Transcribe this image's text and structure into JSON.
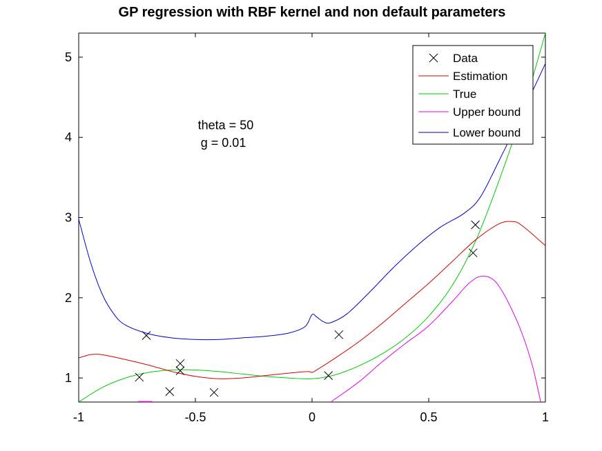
{
  "chart_data": {
    "type": "line",
    "title": "GP regression with RBF kernel and non default parameters",
    "xlabel": "",
    "ylabel": "",
    "xlim": [
      -1,
      1
    ],
    "ylim": [
      0.7,
      5.3
    ],
    "xticks": [
      -1,
      -0.5,
      0,
      0.5,
      1
    ],
    "xtick_labels": [
      "-1",
      "-0.5",
      "0",
      "0.5",
      "1"
    ],
    "yticks": [
      1,
      2,
      3,
      4,
      5
    ],
    "ytick_labels": [
      "1",
      "2",
      "3",
      "4",
      "5"
    ],
    "grid": false,
    "legend_position": "top-right",
    "annotations": [
      {
        "text": "theta = 50",
        "x": -0.37,
        "y": 4.1
      },
      {
        "text": "g = 0.01",
        "x": -0.38,
        "y": 3.88
      }
    ],
    "series": [
      {
        "name": "Data",
        "style": "markers-x",
        "color": "#000000",
        "points": [
          [
            -0.74,
            1.01
          ],
          [
            -0.71,
            1.53
          ],
          [
            -0.61,
            0.83
          ],
          [
            -0.565,
            1.18
          ],
          [
            -0.565,
            1.09
          ],
          [
            -0.42,
            0.82
          ],
          [
            0.07,
            1.03
          ],
          [
            0.115,
            1.54
          ],
          [
            0.69,
            2.56
          ],
          [
            0.7,
            2.91
          ]
        ]
      },
      {
        "name": "Estimation",
        "style": "line",
        "color": "#d40000",
        "points": [
          [
            -1,
            1.25
          ],
          [
            -0.95,
            1.29
          ],
          [
            -0.9,
            1.29
          ],
          [
            -0.8,
            1.23
          ],
          [
            -0.7,
            1.16
          ],
          [
            -0.6,
            1.08
          ],
          [
            -0.5,
            1.02
          ],
          [
            -0.4,
            0.99
          ],
          [
            -0.3,
            1.0
          ],
          [
            -0.2,
            1.03
          ],
          [
            -0.1,
            1.06
          ],
          [
            -0.02,
            1.08
          ],
          [
            0.0,
            1.07
          ],
          [
            0.02,
            1.1
          ],
          [
            0.1,
            1.25
          ],
          [
            0.2,
            1.45
          ],
          [
            0.3,
            1.68
          ],
          [
            0.4,
            1.93
          ],
          [
            0.5,
            2.18
          ],
          [
            0.6,
            2.45
          ],
          [
            0.7,
            2.72
          ],
          [
            0.8,
            2.92
          ],
          [
            0.86,
            2.95
          ],
          [
            0.9,
            2.9
          ],
          [
            1.0,
            2.65
          ]
        ]
      },
      {
        "name": "True",
        "style": "line",
        "color": "#00cc00",
        "points": [
          [
            -1,
            0.7
          ],
          [
            -0.9,
            0.88
          ],
          [
            -0.8,
            1.0
          ],
          [
            -0.7,
            1.07
          ],
          [
            -0.6,
            1.1
          ],
          [
            -0.5,
            1.1
          ],
          [
            -0.4,
            1.08
          ],
          [
            -0.3,
            1.05
          ],
          [
            -0.2,
            1.02
          ],
          [
            -0.1,
            1.0
          ],
          [
            0.0,
            0.99
          ],
          [
            0.1,
            1.04
          ],
          [
            0.2,
            1.15
          ],
          [
            0.3,
            1.3
          ],
          [
            0.4,
            1.5
          ],
          [
            0.5,
            1.77
          ],
          [
            0.6,
            2.15
          ],
          [
            0.7,
            2.7
          ],
          [
            0.8,
            3.45
          ],
          [
            0.9,
            4.3
          ],
          [
            1.0,
            5.3
          ]
        ]
      },
      {
        "name": "Upper bound",
        "style": "line",
        "color": "#e600e6",
        "points": [
          [
            0.08,
            0.7
          ],
          [
            0.2,
            0.95
          ],
          [
            0.3,
            1.2
          ],
          [
            0.4,
            1.43
          ],
          [
            0.5,
            1.65
          ],
          [
            0.6,
            1.95
          ],
          [
            0.68,
            2.2
          ],
          [
            0.74,
            2.27
          ],
          [
            0.8,
            2.15
          ],
          [
            0.88,
            1.7
          ],
          [
            0.94,
            1.2
          ],
          [
            0.98,
            0.7
          ]
        ],
        "segments": [
          [
            [
              -0.745,
              0.705
            ],
            [
              -0.685,
              0.705
            ]
          ]
        ]
      },
      {
        "name": "Lower bound",
        "style": "line",
        "color": "#0000cc",
        "points": [
          [
            -1,
            2.98
          ],
          [
            -0.95,
            2.45
          ],
          [
            -0.9,
            2.05
          ],
          [
            -0.85,
            1.8
          ],
          [
            -0.8,
            1.66
          ],
          [
            -0.7,
            1.55
          ],
          [
            -0.6,
            1.5
          ],
          [
            -0.5,
            1.48
          ],
          [
            -0.4,
            1.48
          ],
          [
            -0.3,
            1.5
          ],
          [
            -0.2,
            1.52
          ],
          [
            -0.1,
            1.56
          ],
          [
            -0.03,
            1.64
          ],
          [
            0.0,
            1.79
          ],
          [
            0.02,
            1.76
          ],
          [
            0.05,
            1.7
          ],
          [
            0.08,
            1.69
          ],
          [
            0.15,
            1.8
          ],
          [
            0.25,
            2.08
          ],
          [
            0.35,
            2.38
          ],
          [
            0.45,
            2.65
          ],
          [
            0.55,
            2.88
          ],
          [
            0.65,
            3.05
          ],
          [
            0.72,
            3.25
          ],
          [
            0.8,
            3.7
          ],
          [
            0.9,
            4.3
          ],
          [
            1.0,
            4.92
          ]
        ]
      }
    ]
  }
}
